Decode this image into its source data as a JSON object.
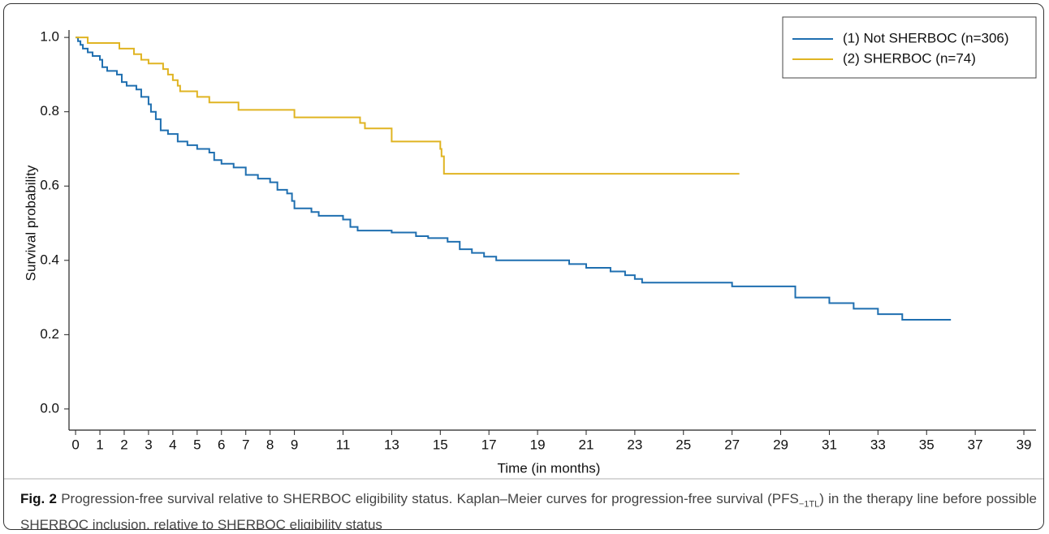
{
  "chart_data": {
    "type": "step",
    "x_label": "Time (in months)",
    "y_label": "Survival probability",
    "xlim": [
      -0.27,
      39.5
    ],
    "ylim": [
      -0.057,
      1.02
    ],
    "xticks": [
      0,
      1,
      2,
      3,
      4,
      5,
      6,
      7,
      8,
      9,
      11,
      13,
      15,
      17,
      19,
      21,
      23,
      25,
      27,
      29,
      31,
      33,
      35,
      37,
      39
    ],
    "yticks": [
      {
        "value": 0,
        "label": "0.0"
      },
      0.2,
      0.4,
      0.6,
      0.8,
      {
        "value": 1,
        "label": "1.0"
      }
    ],
    "legend": "top-right",
    "series": [
      {
        "name": "(1) Not SHERBOC (n=306)",
        "color": "#1f6fb0",
        "x": [
          0,
          0.1,
          0.2,
          0.3,
          0.5,
          0.7,
          1.0,
          1.1,
          1.3,
          1.7,
          1.9,
          2.1,
          2.5,
          2.7,
          3.0,
          3.1,
          3.3,
          3.5,
          3.8,
          4.2,
          4.6,
          5.0,
          5.5,
          5.7,
          6.0,
          6.5,
          7.0,
          7.5,
          8.0,
          8.3,
          8.7,
          8.9,
          9.0,
          9.7,
          10.0,
          11.0,
          11.3,
          11.6,
          13.0,
          14.0,
          14.5,
          15.3,
          15.8,
          16.3,
          16.8,
          17.3,
          20.3,
          21.0,
          22.0,
          22.6,
          23.0,
          23.3,
          27.0,
          29.6,
          31.0,
          32.0,
          33.0,
          34.0,
          36.0
        ],
        "values": [
          1.0,
          0.99,
          0.98,
          0.97,
          0.96,
          0.95,
          0.94,
          0.92,
          0.91,
          0.9,
          0.88,
          0.87,
          0.86,
          0.84,
          0.82,
          0.8,
          0.78,
          0.75,
          0.74,
          0.72,
          0.71,
          0.7,
          0.69,
          0.67,
          0.66,
          0.65,
          0.63,
          0.62,
          0.61,
          0.59,
          0.58,
          0.56,
          0.54,
          0.53,
          0.52,
          0.51,
          0.49,
          0.48,
          0.475,
          0.465,
          0.46,
          0.45,
          0.43,
          0.42,
          0.41,
          0.4,
          0.39,
          0.38,
          0.37,
          0.36,
          0.35,
          0.34,
          0.33,
          0.3,
          0.285,
          0.27,
          0.255,
          0.24,
          0.24
        ]
      },
      {
        "name": "(2) SHERBOC (n=74)",
        "color": "#e0b422",
        "x": [
          0,
          0.5,
          1.8,
          2.4,
          2.7,
          3.0,
          3.6,
          3.8,
          4.0,
          4.2,
          4.3,
          5.0,
          5.5,
          6.7,
          9.0,
          11.7,
          11.9,
          13.0,
          15.0,
          15.05,
          15.15,
          27.3
        ],
        "values": [
          1.0,
          0.985,
          0.97,
          0.955,
          0.94,
          0.93,
          0.915,
          0.9,
          0.885,
          0.87,
          0.855,
          0.84,
          0.825,
          0.805,
          0.785,
          0.77,
          0.755,
          0.72,
          0.7,
          0.68,
          0.633,
          0.633
        ]
      }
    ]
  },
  "caption": {
    "label": "Fig. 2",
    "text_before": "Progression-free survival relative to SHERBOC eligibility status. Kaplan–Meier curves for progression-free survival (PFS",
    "subscript": "−1TL",
    "text_after": ") in the therapy line before possible SHERBOC inclusion, relative to SHERBOC eligibility status"
  }
}
